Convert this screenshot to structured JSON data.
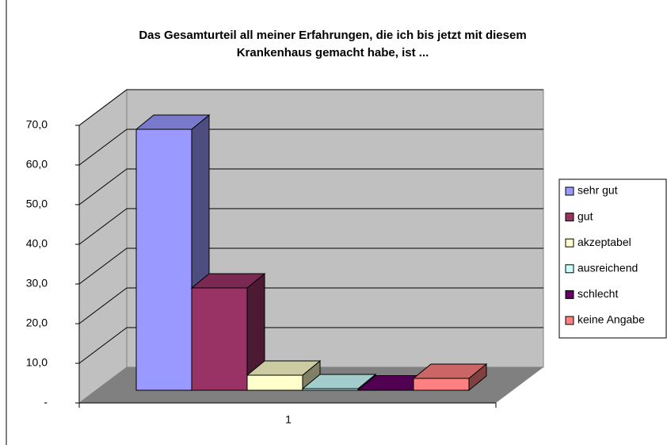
{
  "chart_data": {
    "type": "bar3d",
    "title": [
      "Das Gesamturteil all meiner Erfahrungen, die ich bis jetzt mit diesem",
      "Krankenhaus gemacht habe, ist ..."
    ],
    "categories": [
      "1"
    ],
    "series": [
      {
        "name": "sehr gut",
        "color": "#9999ff",
        "values": [
          65.8
        ]
      },
      {
        "name": "gut",
        "color": "#993366",
        "values": [
          25.8
        ]
      },
      {
        "name": "akzeptabel",
        "color": "#ffffcc",
        "values": [
          3.8
        ]
      },
      {
        "name": "ausreichend",
        "color": "#ccffff",
        "values": [
          0.4
        ]
      },
      {
        "name": "schlecht",
        "color": "#660066",
        "values": [
          0.1
        ]
      },
      {
        "name": "keine Angabe",
        "color": "#ff8080",
        "values": [
          3.0
        ]
      }
    ],
    "ylim": [
      0,
      70
    ],
    "yticks": [
      {
        "value": 0,
        "label": "-"
      },
      {
        "value": 10,
        "label": "10,0"
      },
      {
        "value": 20,
        "label": "20,0"
      },
      {
        "value": 30,
        "label": "30,0"
      },
      {
        "value": 40,
        "label": "40,0"
      },
      {
        "value": 50,
        "label": "50,0"
      },
      {
        "value": 60,
        "label": "60,0"
      },
      {
        "value": 70,
        "label": "70,0"
      }
    ],
    "grid": true,
    "legend": "right"
  }
}
